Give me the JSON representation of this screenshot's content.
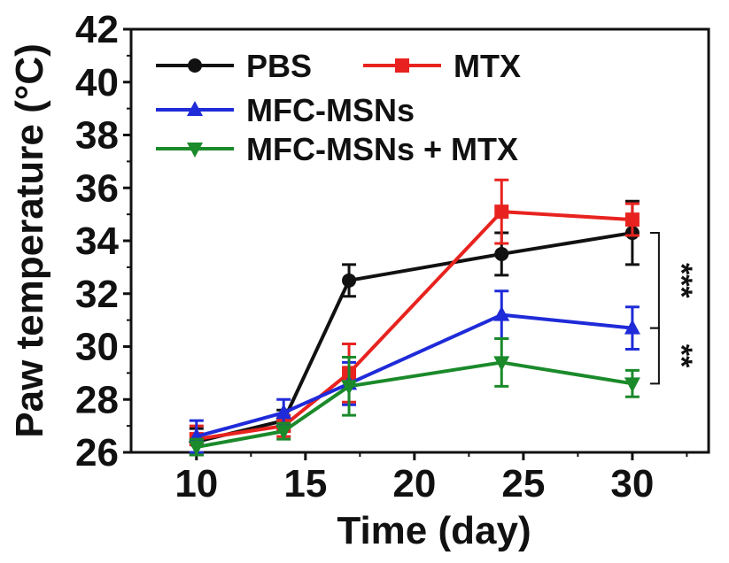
{
  "chart_data": {
    "type": "line",
    "xlabel": "Time (day)",
    "ylabel": "Paw temperature (°C)",
    "xlim": [
      7,
      33.5
    ],
    "ylim": [
      26,
      42
    ],
    "xticks": [
      10,
      15,
      20,
      25,
      30
    ],
    "yticks": [
      26,
      28,
      30,
      32,
      34,
      36,
      38,
      40,
      42
    ],
    "x": [
      10,
      14,
      17,
      24,
      30
    ],
    "legend_position": "top-left",
    "grid": false,
    "series": [
      {
        "name": "PBS",
        "color": "#111111",
        "marker": "circle",
        "values": [
          26.4,
          27.2,
          32.5,
          33.5,
          34.3
        ],
        "errors": [
          0.5,
          0.4,
          0.6,
          0.8,
          1.2
        ]
      },
      {
        "name": "MTX",
        "color": "#e8231f",
        "marker": "square",
        "values": [
          26.5,
          27.0,
          29.0,
          35.1,
          34.8
        ],
        "errors": [
          0.5,
          0.4,
          1.1,
          1.2,
          0.6
        ]
      },
      {
        "name": "MFC-MSNs",
        "color": "#1f2bd8",
        "marker": "triangle-up",
        "values": [
          26.6,
          27.5,
          28.6,
          31.2,
          30.7
        ],
        "errors": [
          0.6,
          0.5,
          0.8,
          0.9,
          0.8
        ]
      },
      {
        "name": "MFC-MSNs + MTX",
        "color": "#1a8a2a",
        "marker": "triangle-down",
        "values": [
          26.2,
          26.8,
          28.5,
          29.4,
          28.6
        ],
        "errors": [
          0.3,
          0.3,
          1.1,
          0.9,
          0.5
        ]
      }
    ],
    "annotations": [
      {
        "text": "***",
        "between": [
          "PBS",
          "MFC-MSNs"
        ],
        "x": 30
      },
      {
        "text": "**",
        "between": [
          "MFC-MSNs",
          "MFC-MSNs + MTX"
        ],
        "x": 30
      }
    ]
  }
}
